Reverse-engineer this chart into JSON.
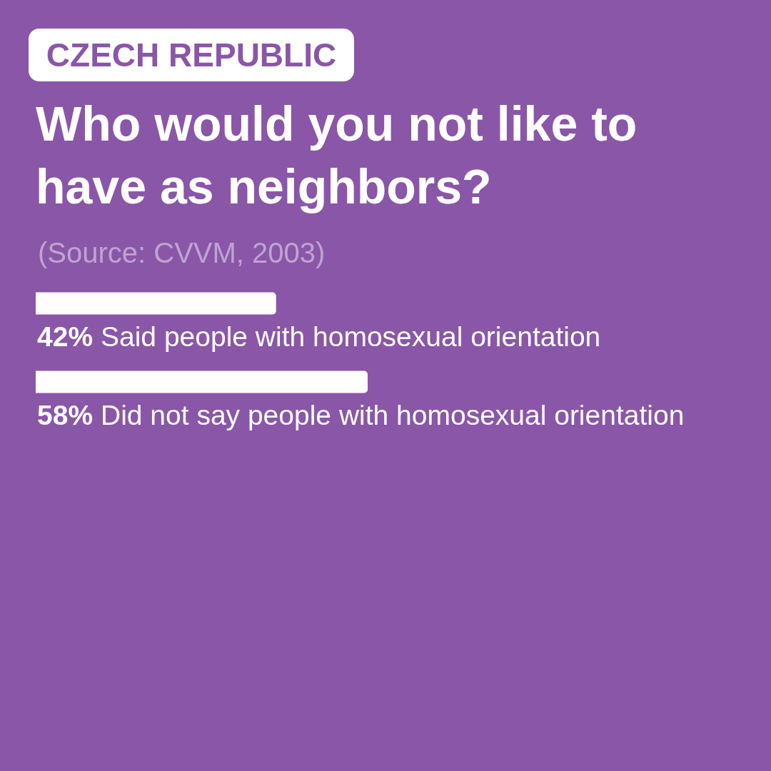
{
  "chart_data": {
    "type": "bar",
    "orientation": "horizontal",
    "title": "Who would you not like to have as neighbors?",
    "subtitle": "CZECH REPUBLIC",
    "annotations": [
      "(Source: CVVM, 2003)"
    ],
    "categories": [
      "Said people with homosexual orientation",
      "Did not say people with homosexual orientation"
    ],
    "values": [
      42,
      58
    ],
    "value_labels": [
      "42%",
      "58%"
    ],
    "color": "#ffffff",
    "tick_labels": false
  }
}
